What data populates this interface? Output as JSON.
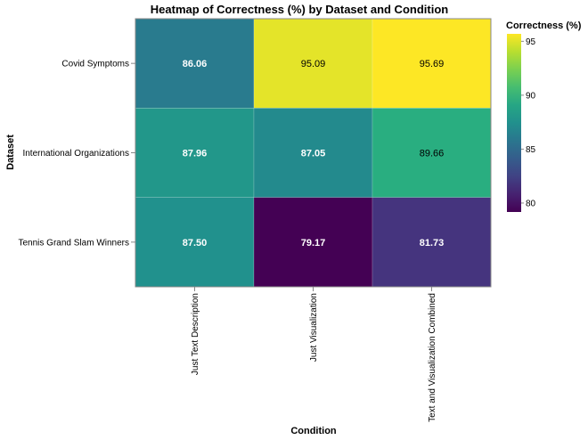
{
  "chart_data": {
    "type": "heatmap",
    "title": "Heatmap of Correctness (%) by Dataset and Condition",
    "xlabel": "Condition",
    "ylabel": "Dataset",
    "x_categories": [
      "Just Text Description",
      "Just Visualization",
      "Text and Visualization Combined"
    ],
    "y_categories": [
      "Covid Symptoms",
      "International Organizations",
      "Tennis Grand Slam Winners"
    ],
    "values": [
      [
        86.06,
        95.09,
        95.69
      ],
      [
        87.96,
        87.05,
        89.66
      ],
      [
        87.5,
        79.17,
        81.73
      ]
    ],
    "value_labels": [
      [
        "86.06",
        "95.09",
        "95.69"
      ],
      [
        "87.96",
        "87.05",
        "89.66"
      ],
      [
        "87.50",
        "79.17",
        "81.73"
      ]
    ],
    "color_scale": "viridis",
    "color_domain": [
      79.17,
      95.69
    ],
    "legend": {
      "title": "Correctness (%)",
      "ticks": [
        80,
        85,
        90,
        95
      ],
      "tick_labels": [
        "80",
        "85",
        "90",
        "95"
      ],
      "placement": "right"
    }
  }
}
